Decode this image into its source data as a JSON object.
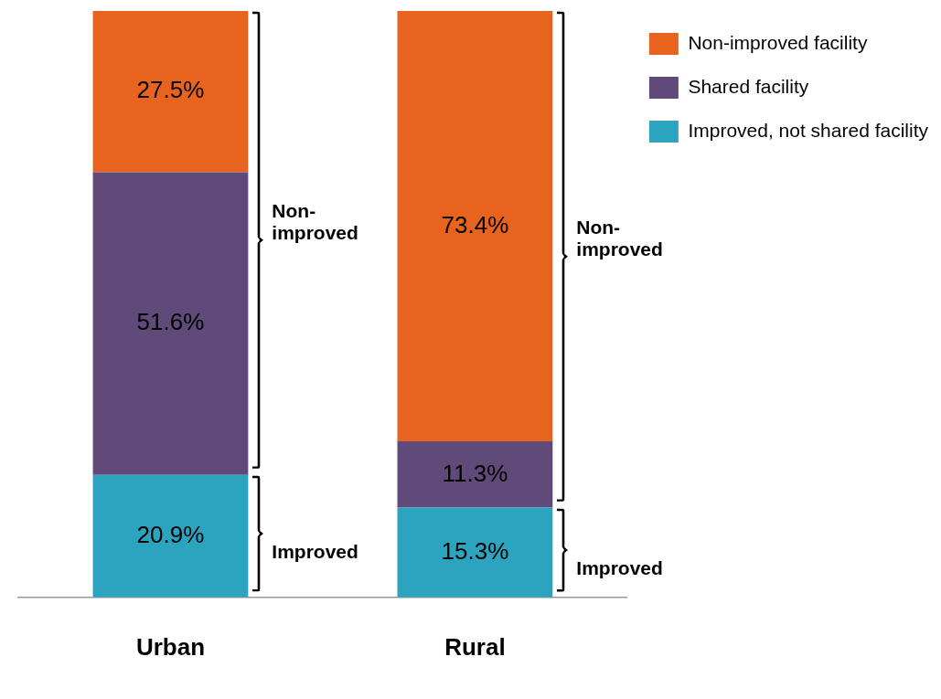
{
  "chart_data": {
    "type": "bar",
    "stacked": true,
    "categories": [
      "Urban",
      "Rural"
    ],
    "series": [
      {
        "name": "Improved, not shared facility",
        "color": "#2ca3bf",
        "values": [
          20.9,
          15.3
        ],
        "value_labels": [
          "20.9%",
          "15.3%"
        ]
      },
      {
        "name": "Shared facility",
        "color": "#5f4a7a",
        "values": [
          51.6,
          11.3
        ],
        "value_labels": [
          "51.6%",
          "11.3%"
        ]
      },
      {
        "name": "Non-improved facility",
        "color": "#e8641e",
        "values": [
          27.5,
          73.4
        ],
        "value_labels": [
          "27.5%",
          "73.4%"
        ]
      }
    ],
    "grid": false,
    "legend": "top right",
    "annotations": [
      "Non-improved",
      "Improved",
      "Non-improved",
      "Improved"
    ]
  }
}
